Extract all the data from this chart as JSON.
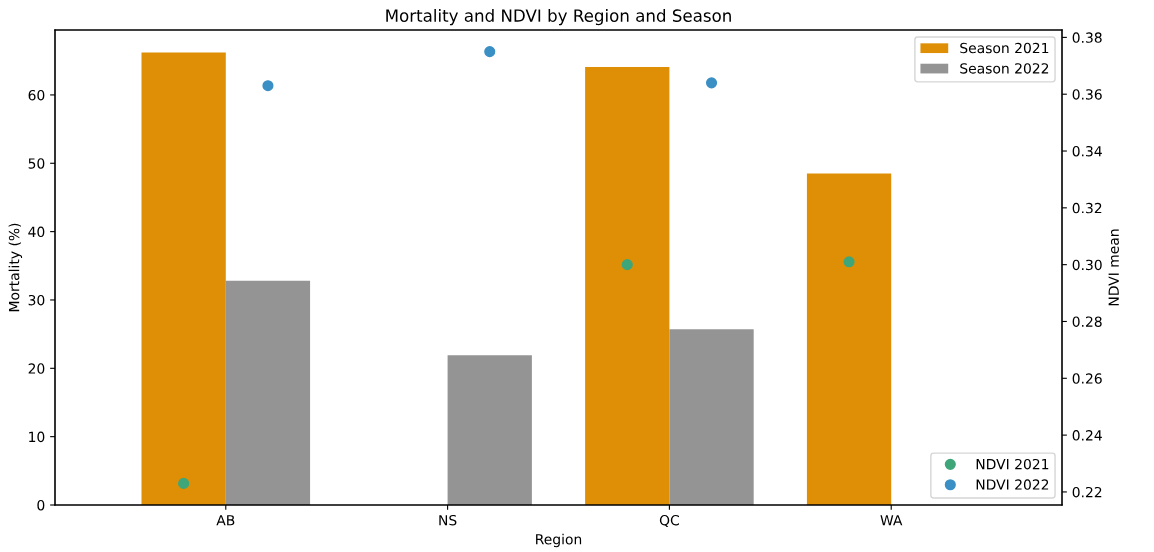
{
  "chart_data": {
    "type": "bar",
    "title": "Mortality and NDVI by Region and Season",
    "xlabel": "Region",
    "ylabel": "Mortality (%)",
    "y2label": "NDVI mean",
    "categories": [
      "AB",
      "NS",
      "QC",
      "WA"
    ],
    "series": [
      {
        "name": "Season 2021",
        "color": "#de8f05",
        "values": [
          66.2,
          null,
          64.1,
          48.5
        ]
      },
      {
        "name": "Season 2022",
        "color": "#949494",
        "values": [
          32.8,
          21.9,
          25.7,
          null
        ]
      },
      {
        "name": "NDVI 2021",
        "type": "scatter",
        "axis": "y2",
        "color": "#3fa67a",
        "values": [
          0.223,
          null,
          0.3,
          0.301
        ]
      },
      {
        "name": "NDVI 2022",
        "type": "scatter",
        "axis": "y2",
        "color": "#3a8fc4",
        "values": [
          0.363,
          0.375,
          0.364,
          null
        ]
      }
    ],
    "ylim": [
      0,
      69.5
    ],
    "yticks": [
      0,
      10,
      20,
      30,
      40,
      50,
      60
    ],
    "y2lim": [
      0.2154,
      0.3826
    ],
    "y2ticks": [
      {
        "value": 0.22,
        "label": "0.22"
      },
      {
        "value": 0.24,
        "label": "0.24"
      },
      {
        "value": 0.26,
        "label": "0.26"
      },
      {
        "value": 0.28,
        "label": "0.28"
      },
      {
        "value": 0.3,
        "label": "0.30"
      },
      {
        "value": 0.32,
        "label": "0.32"
      },
      {
        "value": 0.34,
        "label": "0.34"
      },
      {
        "value": 0.36,
        "label": "0.36"
      },
      {
        "value": 0.38,
        "label": "0.38"
      }
    ],
    "legend": [
      "top right",
      "bottom right"
    ],
    "grid": false,
    "marker": "circle"
  }
}
